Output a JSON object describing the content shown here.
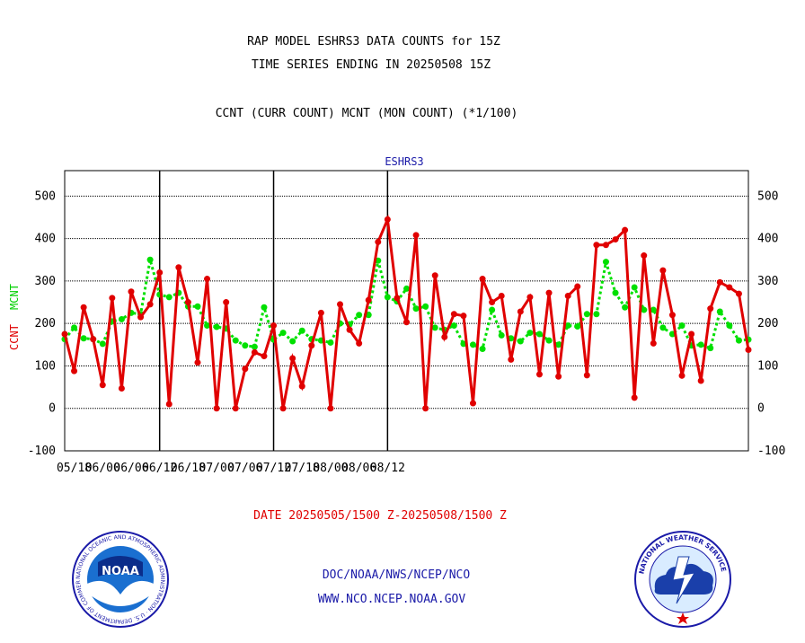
{
  "header": {
    "title_line1": "RAP MODEL ESHRS3 DATA COUNTS for 15Z",
    "title_line2": "TIME SERIES ENDING IN 20250508 15Z",
    "subtitle": "CCNT (CURR COUNT) MCNT (MON COUNT) (*1/100)"
  },
  "footer": {
    "date_range": "DATE 20250505/1500 Z-20250508/1500 Z",
    "org_path": "DOC/NOAA/NWS/NCEP/NCO",
    "website": "WWW.NCO.NCEP.NOAA.GOV"
  },
  "logos": {
    "noaa_text": "NOAA",
    "noaa_ring": "NATIONAL OCEANIC AND ATMOSPHERIC ADMINISTRATION · U.S. DEPARTMENT OF COMMERCE ·",
    "nws_ring": "NATIONAL WEATHER SERVICE"
  },
  "colors": {
    "ccnt": "#e00000",
    "mcnt": "#00e000",
    "panel_title": "#1a1aa8"
  },
  "chart_data": {
    "type": "line",
    "title": "ESHRS3",
    "ylabel_left": "CCNT",
    "ylabel_right": "MCNT",
    "ylim": [
      -100,
      560
    ],
    "yticks": [
      -100,
      0,
      100,
      200,
      300,
      400,
      500
    ],
    "grid": true,
    "x_tick_labels": [
      "05/18",
      "06/00",
      "06/06",
      "06/12",
      "06/18",
      "07/00",
      "07/06",
      "07/12",
      "07/18",
      "08/00",
      "08/06",
      "08/12"
    ],
    "series": [
      {
        "name": "CCNT",
        "values": [
          175,
          88,
          238,
          163,
          55,
          260,
          47,
          275,
          215,
          245,
          320,
          10,
          332,
          250,
          108,
          305,
          0,
          250,
          0,
          93,
          132,
          123,
          195,
          0,
          118,
          52,
          148,
          225,
          0,
          245,
          185,
          153,
          255,
          392,
          445,
          260,
          203,
          408,
          0,
          313,
          168,
          222,
          218,
          12,
          305,
          250,
          265,
          115,
          228,
          262,
          80,
          272,
          75,
          265,
          287,
          78,
          385,
          385,
          398,
          420,
          25,
          360,
          153,
          325,
          220,
          77,
          175,
          65,
          235,
          297,
          285,
          270,
          138
        ]
      },
      {
        "name": "MCNT",
        "values": [
          163,
          190,
          165,
          163,
          152,
          205,
          210,
          225,
          222,
          350,
          268,
          262,
          272,
          240,
          240,
          195,
          192,
          188,
          160,
          148,
          145,
          238,
          162,
          178,
          158,
          183,
          163,
          160,
          155,
          200,
          198,
          220,
          220,
          348,
          262,
          252,
          282,
          235,
          240,
          190,
          185,
          195,
          152,
          150,
          140,
          232,
          172,
          165,
          158,
          178,
          175,
          160,
          150,
          195,
          193,
          222,
          222,
          345,
          272,
          238,
          285,
          232,
          232,
          190,
          175,
          195,
          148,
          150,
          142,
          228,
          195,
          160,
          162
        ]
      }
    ]
  }
}
